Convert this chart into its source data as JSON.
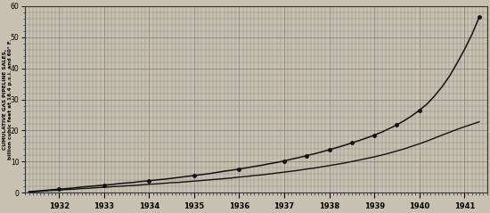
{
  "ylabel_line1": "CUMULATIVE GAS PIPELINE SALES,",
  "ylabel_line2": "billion cubic feet at 16.4 p.s.i. and 60° F.",
  "ylim": [
    0,
    60
  ],
  "yticks_major": [
    0,
    10,
    20,
    30,
    40,
    50,
    60
  ],
  "yticks_minor_step": 2,
  "background_color": "#c8c0b0",
  "grid_major_color": "#888880",
  "grid_minor_color": "#aaa89a",
  "line_color": "#111111",
  "xmin": 1931.25,
  "xmax": 1941.5,
  "line1": {
    "x": [
      1931.33,
      1931.5,
      1931.67,
      1931.83,
      1932.0,
      1932.17,
      1932.33,
      1932.5,
      1932.67,
      1932.83,
      1933.0,
      1933.17,
      1933.33,
      1933.5,
      1933.67,
      1933.83,
      1934.0,
      1934.17,
      1934.33,
      1934.5,
      1934.67,
      1934.83,
      1935.0,
      1935.17,
      1935.33,
      1935.5,
      1935.67,
      1935.83,
      1936.0,
      1936.17,
      1936.33,
      1936.5,
      1936.67,
      1936.83,
      1937.0,
      1937.17,
      1937.33,
      1937.5,
      1937.67,
      1937.83,
      1938.0,
      1938.17,
      1938.33,
      1938.5,
      1938.67,
      1938.83,
      1939.0,
      1939.17,
      1939.33,
      1939.5,
      1939.67,
      1939.83,
      1940.0,
      1940.17,
      1940.33,
      1940.5,
      1940.67,
      1940.83,
      1941.0,
      1941.17,
      1941.33
    ],
    "y": [
      0.3,
      0.5,
      0.7,
      0.9,
      1.1,
      1.3,
      1.5,
      1.8,
      2.0,
      2.2,
      2.4,
      2.6,
      2.9,
      3.1,
      3.3,
      3.6,
      3.8,
      4.1,
      4.3,
      4.6,
      4.9,
      5.2,
      5.5,
      5.8,
      6.1,
      6.5,
      6.9,
      7.2,
      7.6,
      8.0,
      8.4,
      8.8,
      9.3,
      9.7,
      10.2,
      10.8,
      11.3,
      11.9,
      12.5,
      13.1,
      13.8,
      14.5,
      15.2,
      16.0,
      16.8,
      17.6,
      18.5,
      19.5,
      20.6,
      21.8,
      23.2,
      24.7,
      26.5,
      28.5,
      31.0,
      34.0,
      37.5,
      41.5,
      46.0,
      51.0,
      56.5
    ]
  },
  "line2": {
    "x": [
      1931.33,
      1931.5,
      1931.67,
      1931.83,
      1932.0,
      1932.17,
      1932.33,
      1932.5,
      1932.67,
      1932.83,
      1933.0,
      1933.17,
      1933.33,
      1933.5,
      1933.67,
      1933.83,
      1934.0,
      1934.17,
      1934.33,
      1934.5,
      1934.67,
      1934.83,
      1935.0,
      1935.17,
      1935.33,
      1935.5,
      1935.67,
      1935.83,
      1936.0,
      1936.17,
      1936.33,
      1936.5,
      1936.67,
      1936.83,
      1937.0,
      1937.17,
      1937.33,
      1937.5,
      1937.67,
      1937.83,
      1938.0,
      1938.17,
      1938.33,
      1938.5,
      1938.67,
      1938.83,
      1939.0,
      1939.17,
      1939.33,
      1939.5,
      1939.67,
      1939.83,
      1940.0,
      1940.17,
      1940.33,
      1940.5,
      1940.67,
      1940.83,
      1941.0,
      1941.17,
      1941.33
    ],
    "y": [
      0.2,
      0.3,
      0.5,
      0.7,
      0.8,
      1.0,
      1.1,
      1.3,
      1.4,
      1.6,
      1.7,
      1.9,
      2.0,
      2.2,
      2.3,
      2.5,
      2.7,
      2.8,
      3.0,
      3.2,
      3.3,
      3.5,
      3.7,
      3.9,
      4.1,
      4.3,
      4.5,
      4.7,
      5.0,
      5.2,
      5.5,
      5.7,
      6.0,
      6.3,
      6.6,
      6.9,
      7.2,
      7.6,
      7.9,
      8.3,
      8.7,
      9.1,
      9.5,
      10.0,
      10.5,
      11.0,
      11.5,
      12.1,
      12.7,
      13.4,
      14.1,
      14.9,
      15.7,
      16.6,
      17.5,
      18.5,
      19.4,
      20.3,
      21.2,
      22.0,
      22.8
    ]
  },
  "dot_years": [
    1932.0,
    1933.0,
    1934.0,
    1935.0,
    1936.0,
    1937.0,
    1937.5,
    1938.0,
    1938.5,
    1939.0,
    1939.5,
    1940.0,
    1941.33
  ],
  "dot_y1": [
    1.1,
    2.4,
    3.8,
    5.5,
    7.6,
    10.2,
    11.9,
    13.8,
    16.0,
    18.5,
    21.8,
    26.5,
    56.5
  ],
  "major_year_positions": [
    1932,
    1933,
    1934,
    1935,
    1936,
    1937,
    1938,
    1939,
    1940,
    1941
  ]
}
